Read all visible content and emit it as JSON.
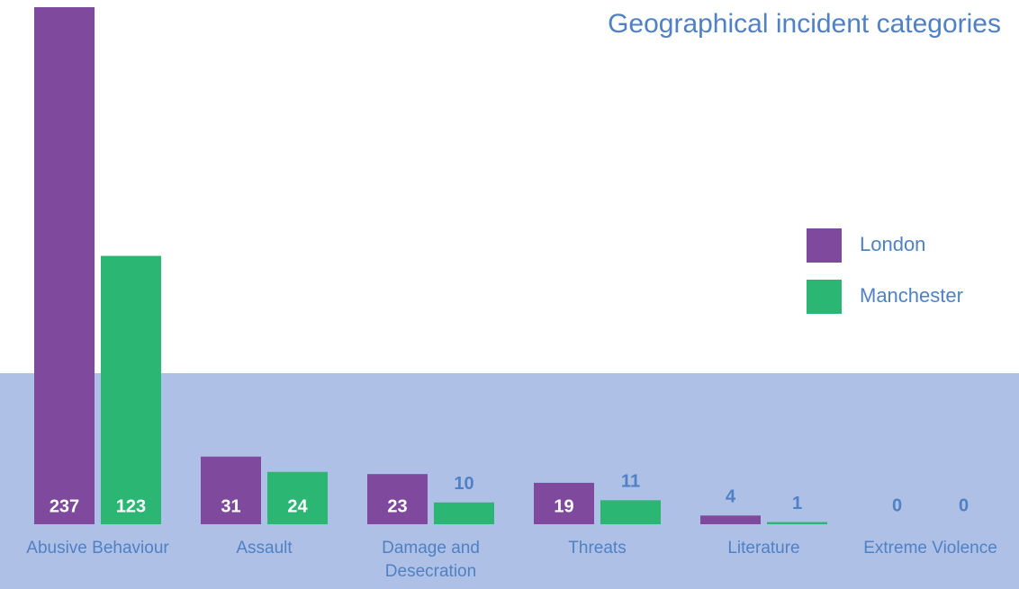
{
  "chart_data": {
    "type": "bar",
    "title": "Geographical incident categories",
    "categories": [
      "Abusive Behaviour",
      "Assault",
      "Damage and Desecration",
      "Threats",
      "Literature",
      "Extreme Violence"
    ],
    "series": [
      {
        "name": "London",
        "color": "#7f4a9e",
        "values": [
          237,
          31,
          23,
          19,
          4,
          0
        ]
      },
      {
        "name": "Manchester",
        "color": "#2bb673",
        "values": [
          123,
          24,
          10,
          11,
          1,
          0
        ]
      }
    ],
    "legend": "right"
  }
}
